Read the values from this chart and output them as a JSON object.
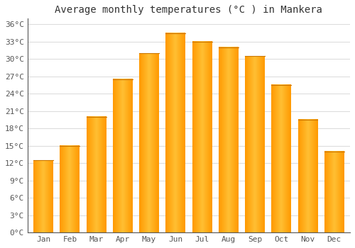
{
  "title": "Average monthly temperatures (°C ) in Mankera",
  "months": [
    "Jan",
    "Feb",
    "Mar",
    "Apr",
    "May",
    "Jun",
    "Jul",
    "Aug",
    "Sep",
    "Oct",
    "Nov",
    "Dec"
  ],
  "temperatures": [
    12.5,
    15.0,
    20.0,
    26.5,
    31.0,
    34.5,
    33.0,
    32.0,
    30.5,
    25.5,
    19.5,
    14.0
  ],
  "bar_color_main": "#FFA500",
  "bar_color_light": "#FFD060",
  "background_color": "#FFFFFF",
  "grid_color": "#DDDDDD",
  "ylim": [
    0,
    37
  ],
  "yticks": [
    0,
    3,
    6,
    9,
    12,
    15,
    18,
    21,
    24,
    27,
    30,
    33,
    36
  ],
  "title_fontsize": 10,
  "tick_fontsize": 8,
  "title_font": "monospace",
  "tick_font": "monospace"
}
